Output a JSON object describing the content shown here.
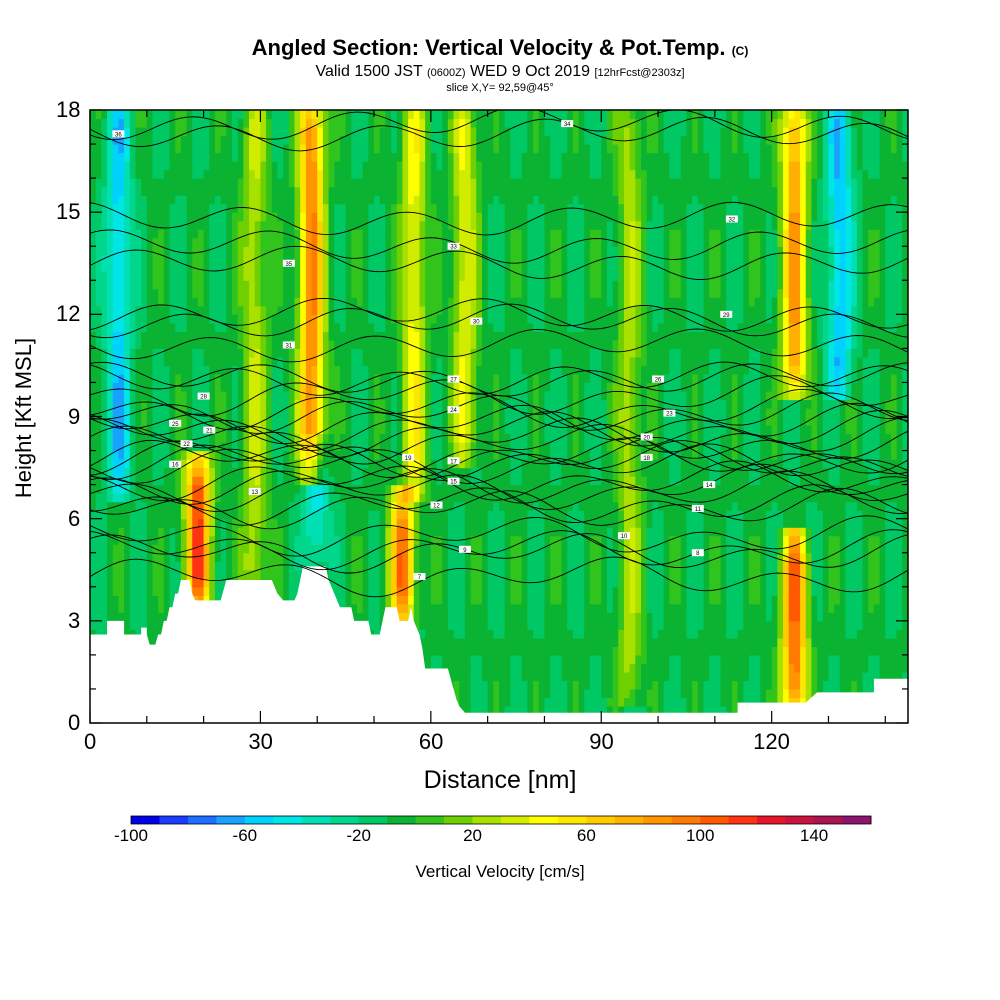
{
  "header": {
    "title_main": "Angled Section: Vertical Velocity & Pot.Temp.",
    "title_mark": "(C)",
    "valid_a": "Valid 1500 JST",
    "valid_b": "(0600Z)",
    "valid_c": "WED 9 Oct 2019",
    "valid_d": "[12hrFcst@2303z]",
    "slice": "slice X,Y= 92,59@45°"
  },
  "chart_data": {
    "type": "heatmap",
    "xlabel": "Distance [nm]",
    "ylabel": "Height [Kft MSL]",
    "xlim": [
      0,
      144
    ],
    "ylim": [
      0,
      18
    ],
    "x_ticks": [
      "0",
      "30",
      "60",
      "90",
      "120"
    ],
    "y_ticks": [
      "0",
      "3",
      "6",
      "9",
      "12",
      "15",
      "18"
    ],
    "background_value_cms": -8,
    "updraft_columns": [
      {
        "x": 5,
        "peak_cms": -55,
        "y_bottom": 7,
        "y_top": 18
      },
      {
        "x": 19,
        "peak_cms": 110,
        "y_bottom": 3.8,
        "y_top": 7.5
      },
      {
        "x": 29,
        "peak_cms": 30,
        "y_bottom": 4,
        "y_top": 18
      },
      {
        "x": 39,
        "peak_cms": 90,
        "y_bottom": 7.5,
        "y_top": 18
      },
      {
        "x": 40,
        "peak_cms": -45,
        "y_bottom": 5,
        "y_top": 8
      },
      {
        "x": 55,
        "peak_cms": 95,
        "y_bottom": 3.3,
        "y_top": 6.3
      },
      {
        "x": 57,
        "peak_cms": 45,
        "y_bottom": 7,
        "y_top": 18
      },
      {
        "x": 66,
        "peak_cms": 40,
        "y_bottom": 8,
        "y_top": 18
      },
      {
        "x": 95,
        "peak_cms": 25,
        "y_bottom": 1,
        "y_top": 18
      },
      {
        "x": 124,
        "peak_cms": 100,
        "y_bottom": 0.6,
        "y_top": 5.2
      },
      {
        "x": 124,
        "peak_cms": 80,
        "y_bottom": 10,
        "y_top": 18
      },
      {
        "x": 132,
        "peak_cms": -60,
        "y_bottom": 10,
        "y_top": 18
      }
    ],
    "colorbar": {
      "title": "Vertical Velocity [cm/s]",
      "range": [
        -100,
        160
      ],
      "step": 10,
      "tick_labels": [
        "-100",
        "-60",
        "-20",
        "20",
        "60",
        "100",
        "140"
      ],
      "colors": [
        "#0000e6",
        "#1a3cff",
        "#1e6eff",
        "#18a2ff",
        "#00d2ff",
        "#00e6e6",
        "#00e0b4",
        "#00d78c",
        "#00c864",
        "#0ab432",
        "#30c41c",
        "#6ed000",
        "#a8e000",
        "#d2ec00",
        "#ffff00",
        "#ffe600",
        "#ffcc00",
        "#ffb000",
        "#ff9600",
        "#ff7a00",
        "#ff5a00",
        "#ff3214",
        "#e61428",
        "#c8143c",
        "#aa1450",
        "#8c146e"
      ]
    },
    "terrain_kft": [
      {
        "x": 0,
        "y": 2.6
      },
      {
        "x": 3,
        "y": 2.6
      },
      {
        "x": 3,
        "y": 3.0
      },
      {
        "x": 6,
        "y": 3.0
      },
      {
        "x": 6,
        "y": 2.6
      },
      {
        "x": 9,
        "y": 2.6
      },
      {
        "x": 9,
        "y": 2.8
      },
      {
        "x": 10,
        "y": 2.8
      },
      {
        "x": 10,
        "y": 2.6
      },
      {
        "x": 10.5,
        "y": 2.3
      },
      {
        "x": 11.5,
        "y": 2.3
      },
      {
        "x": 12,
        "y": 2.6
      },
      {
        "x": 12.5,
        "y": 2.6
      },
      {
        "x": 13,
        "y": 3.0
      },
      {
        "x": 13.5,
        "y": 3.0
      },
      {
        "x": 14,
        "y": 3.4
      },
      {
        "x": 14.5,
        "y": 3.4
      },
      {
        "x": 15,
        "y": 3.8
      },
      {
        "x": 15.5,
        "y": 3.8
      },
      {
        "x": 16,
        "y": 4.2
      },
      {
        "x": 17.5,
        "y": 4.2
      },
      {
        "x": 18,
        "y": 3.8
      },
      {
        "x": 18.5,
        "y": 3.6
      },
      {
        "x": 21.5,
        "y": 3.6
      },
      {
        "x": 22,
        "y": 3.6
      },
      {
        "x": 23,
        "y": 3.6
      },
      {
        "x": 23.5,
        "y": 3.9
      },
      {
        "x": 24,
        "y": 4.2
      },
      {
        "x": 32,
        "y": 4.2
      },
      {
        "x": 33,
        "y": 3.8
      },
      {
        "x": 34,
        "y": 3.6
      },
      {
        "x": 36,
        "y": 3.6
      },
      {
        "x": 36.5,
        "y": 3.8
      },
      {
        "x": 37,
        "y": 4.2
      },
      {
        "x": 37.5,
        "y": 4.6
      },
      {
        "x": 41.5,
        "y": 4.6
      },
      {
        "x": 42,
        "y": 4.2
      },
      {
        "x": 43,
        "y": 3.8
      },
      {
        "x": 44,
        "y": 3.4
      },
      {
        "x": 46,
        "y": 3.4
      },
      {
        "x": 46.5,
        "y": 3.0
      },
      {
        "x": 49,
        "y": 3.0
      },
      {
        "x": 49.5,
        "y": 2.6
      },
      {
        "x": 51,
        "y": 2.6
      },
      {
        "x": 51.5,
        "y": 3.0
      },
      {
        "x": 52,
        "y": 3.4
      },
      {
        "x": 54,
        "y": 3.4
      },
      {
        "x": 54.5,
        "y": 3.0
      },
      {
        "x": 56,
        "y": 3.0
      },
      {
        "x": 56.5,
        "y": 3.4
      },
      {
        "x": 57,
        "y": 3.0
      },
      {
        "x": 58,
        "y": 2.6
      },
      {
        "x": 58.5,
        "y": 2.2
      },
      {
        "x": 59,
        "y": 1.6
      },
      {
        "x": 63,
        "y": 1.6
      },
      {
        "x": 63.5,
        "y": 1.3
      },
      {
        "x": 64,
        "y": 1.0
      },
      {
        "x": 64.5,
        "y": 0.7
      },
      {
        "x": 65,
        "y": 0.5
      },
      {
        "x": 66,
        "y": 0.3
      },
      {
        "x": 73,
        "y": 0.3
      },
      {
        "x": 114,
        "y": 0.3
      },
      {
        "x": 114,
        "y": 0.6
      },
      {
        "x": 120,
        "y": 0.6
      },
      {
        "x": 126,
        "y": 0.6
      },
      {
        "x": 128,
        "y": 0.9
      },
      {
        "x": 130,
        "y": 0.9
      },
      {
        "x": 132,
        "y": 0.9
      },
      {
        "x": 138,
        "y": 0.9
      },
      {
        "x": 138,
        "y": 1.3
      },
      {
        "x": 144,
        "y": 1.3
      }
    ],
    "theta_contour_labels": [
      {
        "label": "36",
        "x": 5,
        "y": 17.3
      },
      {
        "label": "35",
        "x": 35,
        "y": 13.5
      },
      {
        "label": "33",
        "x": 64,
        "y": 14.0
      },
      {
        "label": "34",
        "x": 84,
        "y": 17.6
      },
      {
        "label": "32",
        "x": 113,
        "y": 14.8
      },
      {
        "label": "31",
        "x": 35,
        "y": 11.1
      },
      {
        "label": "30",
        "x": 68,
        "y": 11.8
      },
      {
        "label": "29",
        "x": 112,
        "y": 12.0
      },
      {
        "label": "28",
        "x": 20,
        "y": 9.6
      },
      {
        "label": "27",
        "x": 64,
        "y": 10.1
      },
      {
        "label": "26",
        "x": 100,
        "y": 10.1
      },
      {
        "label": "25",
        "x": 15,
        "y": 8.8
      },
      {
        "label": "24",
        "x": 64,
        "y": 9.2
      },
      {
        "label": "23",
        "x": 102,
        "y": 9.1
      },
      {
        "label": "22",
        "x": 17,
        "y": 8.2
      },
      {
        "label": "21",
        "x": 21,
        "y": 8.6
      },
      {
        "label": "20",
        "x": 98,
        "y": 8.4
      },
      {
        "label": "19",
        "x": 56,
        "y": 7.8
      },
      {
        "label": "18",
        "x": 98,
        "y": 7.8
      },
      {
        "label": "17",
        "x": 64,
        "y": 7.7
      },
      {
        "label": "16",
        "x": 15,
        "y": 7.6
      },
      {
        "label": "15",
        "x": 64,
        "y": 7.1
      },
      {
        "label": "14",
        "x": 109,
        "y": 7.0
      },
      {
        "label": "13",
        "x": 29,
        "y": 6.8
      },
      {
        "label": "12",
        "x": 61,
        "y": 6.4
      },
      {
        "label": "11",
        "x": 107,
        "y": 6.3
      },
      {
        "label": "10",
        "x": 94,
        "y": 5.5
      },
      {
        "label": "9",
        "x": 66,
        "y": 5.1
      },
      {
        "label": "8",
        "x": 107,
        "y": 5.0
      },
      {
        "label": "7",
        "x": 58,
        "y": 4.3
      }
    ]
  }
}
